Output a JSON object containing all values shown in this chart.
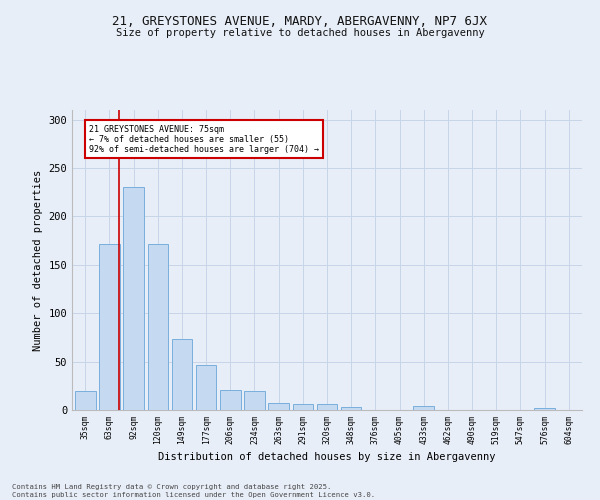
{
  "title_line1": "21, GREYSTONES AVENUE, MARDY, ABERGAVENNY, NP7 6JX",
  "title_line2": "Size of property relative to detached houses in Abergavenny",
  "xlabel": "Distribution of detached houses by size in Abergavenny",
  "ylabel": "Number of detached properties",
  "categories": [
    "35sqm",
    "63sqm",
    "92sqm",
    "120sqm",
    "149sqm",
    "177sqm",
    "206sqm",
    "234sqm",
    "263sqm",
    "291sqm",
    "320sqm",
    "348sqm",
    "376sqm",
    "405sqm",
    "433sqm",
    "462sqm",
    "490sqm",
    "519sqm",
    "547sqm",
    "576sqm",
    "604sqm"
  ],
  "values": [
    20,
    172,
    230,
    172,
    73,
    46,
    21,
    20,
    7,
    6,
    6,
    3,
    0,
    0,
    4,
    0,
    0,
    0,
    0,
    2,
    0
  ],
  "bar_color": "#c5d9f0",
  "bar_edge_color": "#7aafdc",
  "annotation_text_line1": "21 GREYSTONES AVENUE: 75sqm",
  "annotation_text_line2": "← 7% of detached houses are smaller (55)",
  "annotation_text_line3": "92% of semi-detached houses are larger (704) →",
  "annotation_box_facecolor": "#ffffff",
  "annotation_box_edgecolor": "#cc0000",
  "red_line_color": "#cc0000",
  "grid_color": "#c8d4e8",
  "background_color": "#e8eef8",
  "footer_line1": "Contains HM Land Registry data © Crown copyright and database right 2025.",
  "footer_line2": "Contains public sector information licensed under the Open Government Licence v3.0.",
  "ylim": [
    0,
    310
  ],
  "yticks": [
    0,
    50,
    100,
    150,
    200,
    250,
    300
  ],
  "prop_size": 75,
  "bin_starts": [
    35,
    63,
    92,
    120,
    149,
    177,
    206,
    234,
    263,
    291,
    320,
    348,
    376,
    405,
    433,
    462,
    490,
    519,
    547,
    576,
    604
  ]
}
